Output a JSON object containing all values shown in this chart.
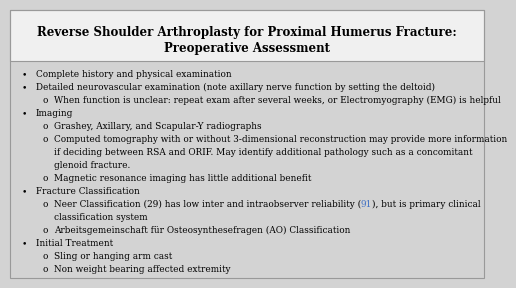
{
  "title_line1": "Reverse Shoulder Arthroplasty for Proximal Humerus Fracture:",
  "title_line2": "Preoperative Assessment",
  "title_bg": "#f0f0f0",
  "body_bg": "#d3d3d3",
  "border_color": "#999999",
  "title_fontsize": 8.5,
  "body_fontsize": 6.4,
  "highlight_color": "#4472c4",
  "bullet_items": [
    {
      "level": 0,
      "text": "Complete history and physical examination",
      "parts": null
    },
    {
      "level": 0,
      "text": "Detailed neurovascular examination (note axillary nerve function by setting the deltoid)",
      "parts": null
    },
    {
      "level": 1,
      "text": "When function is unclear: repeat exam after several weeks, or Electromyography (EMG) is helpful",
      "parts": null
    },
    {
      "level": 0,
      "text": "Imaging",
      "parts": null
    },
    {
      "level": 1,
      "text": "Grashey, Axillary, and Scapular-Y radiographs",
      "parts": null
    },
    {
      "level": 1,
      "text": "Computed tomography with or without 3-dimensional reconstruction may provide more information",
      "parts": null
    },
    {
      "level": 1,
      "text": "if deciding between RSA and ORIF. May identify additional pathology such as a concomitant",
      "indent_extra": true,
      "parts": null
    },
    {
      "level": 1,
      "text": "glenoid fracture.",
      "indent_extra": true,
      "parts": null
    },
    {
      "level": 1,
      "text": "Magnetic resonance imaging has little additional benefit",
      "parts": null
    },
    {
      "level": 0,
      "text": "Fracture Classification",
      "parts": null
    },
    {
      "level": 1,
      "text": "Neer Classification (29) has low inter and intraobserver reliability (",
      "parts": [
        "Neer Classification (29) has low inter and intraobserver reliability (",
        "91",
        "), but is primary clinical"
      ]
    },
    {
      "level": 1,
      "text": "classification system",
      "indent_extra": true,
      "parts": null
    },
    {
      "level": 1,
      "text": "Arbeitsgemeinschaft für Osteosynthesefragen (AO) Classification",
      "parts": null
    },
    {
      "level": 0,
      "text": "Initial Treatment",
      "parts": null
    },
    {
      "level": 1,
      "text": "Sling or hanging arm cast",
      "parts": null
    },
    {
      "level": 1,
      "text": "Non weight bearing affected extremity",
      "parts": null
    }
  ]
}
